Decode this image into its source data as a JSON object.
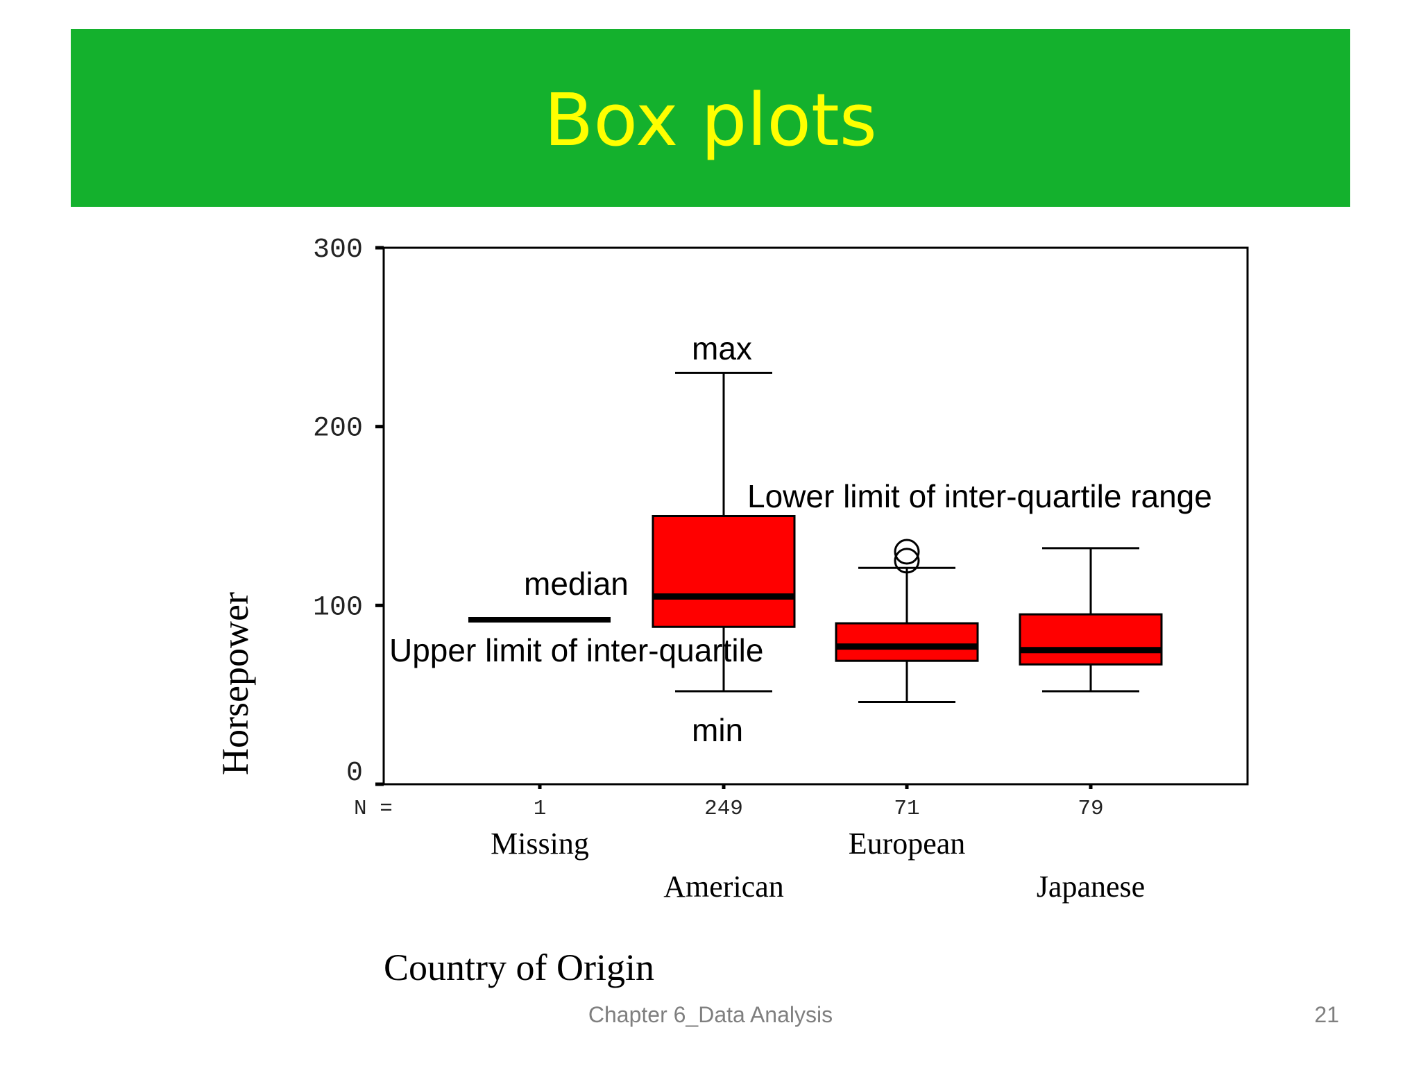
{
  "slide": {
    "title": "Box plots",
    "footer": "Chapter 6_Data Analysis",
    "page_number": "21"
  },
  "colors": {
    "title_bar": "#14b12d",
    "title_text": "#ffff00",
    "box_fill": "#ff0000",
    "footer_text": "#7f7f7f"
  },
  "chart_data": {
    "type": "boxplot",
    "xlabel": "Country of Origin",
    "ylabel": "Horsepower",
    "ylim": [
      0,
      300
    ],
    "yticks": [
      "0",
      "100",
      "200",
      "300"
    ],
    "n_prefix": "N =",
    "grid": false,
    "categories": [
      {
        "name": "Missing",
        "n": "1",
        "single_value": 92
      },
      {
        "name": "American",
        "n": "249",
        "min": 52,
        "q1": 88,
        "median": 105,
        "q3": 150,
        "max": 230
      },
      {
        "name": "European",
        "n": "71",
        "min": 46,
        "q1": 69,
        "median": 77,
        "q3": 90,
        "max": 121,
        "outliers": [
          125,
          130
        ]
      },
      {
        "name": "Japanese",
        "n": "79",
        "min": 52,
        "q1": 67,
        "median": 75,
        "q3": 95,
        "max": 132
      }
    ],
    "annotations": [
      "max",
      "Lower limit of inter-quartile range",
      "median",
      "Upper limit of inter-quartile",
      "min"
    ]
  }
}
